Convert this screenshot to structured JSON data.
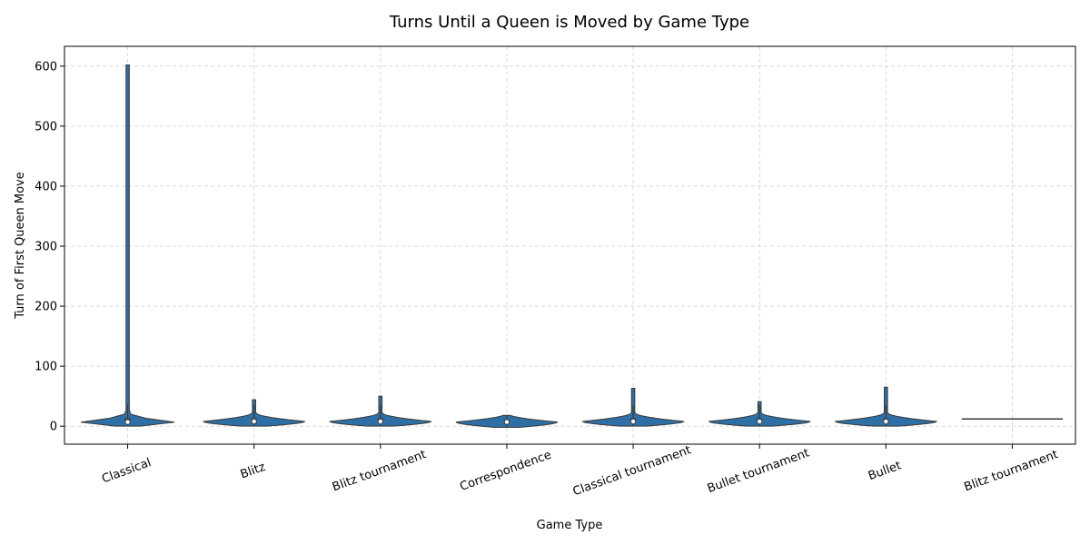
{
  "chart_data": {
    "type": "violin",
    "title": "Turns Until a Queen is Moved by Game Type",
    "xlabel": "Game Type",
    "ylabel": "Turn of First Queen Move",
    "ylim": [
      -30,
      633
    ],
    "yticks": [
      0,
      100,
      200,
      300,
      400,
      500,
      600
    ],
    "grid": true,
    "color": "#2e6fa5",
    "categories": [
      "Classical",
      "Blitz",
      "Blitz tournament",
      "Correspondence",
      "Classical tournament",
      "Bullet tournament",
      "Bullet",
      "Blitz tournament"
    ],
    "violins": [
      {
        "min": 0,
        "q1": 4,
        "median": 7,
        "q3": 13,
        "max": 602,
        "peak": 6
      },
      {
        "min": 0,
        "q1": 4,
        "median": 8,
        "q3": 13,
        "max": 44,
        "peak": 8
      },
      {
        "min": 0,
        "q1": 5,
        "median": 8,
        "q3": 13,
        "max": 50,
        "peak": 8
      },
      {
        "min": -2,
        "q1": 3,
        "median": 7,
        "q3": 11,
        "max": 18,
        "peak": 7
      },
      {
        "min": 0,
        "q1": 5,
        "median": 8,
        "q3": 13,
        "max": 63,
        "peak": 8
      },
      {
        "min": 0,
        "q1": 5,
        "median": 8,
        "q3": 13,
        "max": 41,
        "peak": 8
      },
      {
        "min": 0,
        "q1": 5,
        "median": 8,
        "q3": 13,
        "max": 65,
        "peak": 8
      },
      {
        "min": 12,
        "q1": 12,
        "median": 12,
        "q3": 12,
        "max": 12,
        "peak": 12
      }
    ]
  }
}
